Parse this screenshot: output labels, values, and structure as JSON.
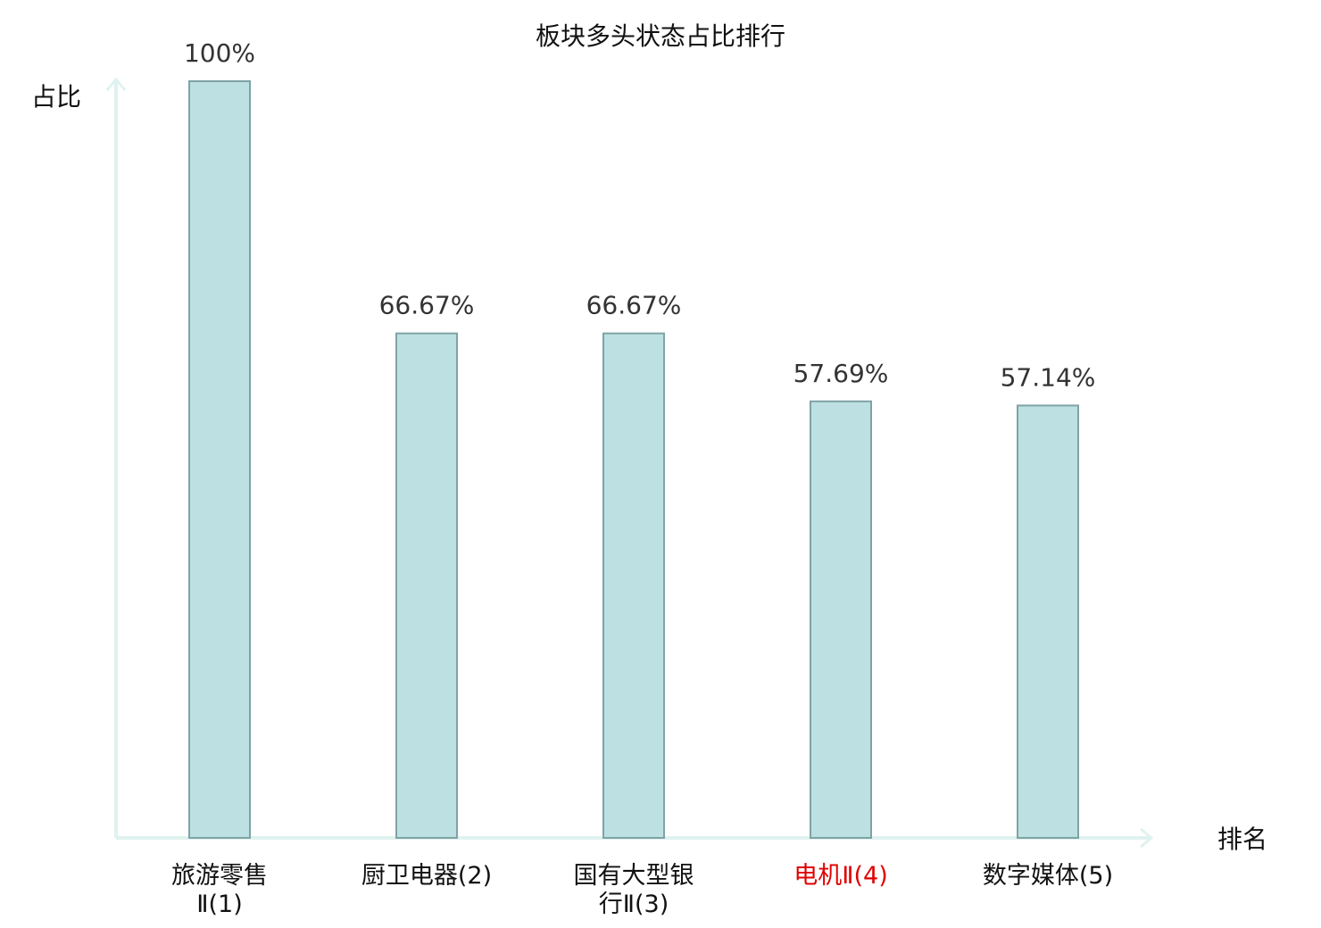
{
  "chart_data": {
    "type": "bar",
    "title": "板块多头状态占比排行",
    "y_label": "占比",
    "x_label": "排名",
    "categories": [
      "旅游零售Ⅱ(1)",
      "厨卫电器(2)",
      "国有大型银行Ⅱ(3)",
      "电机Ⅱ(4)",
      "数字媒体(5)"
    ],
    "category_colors": [
      "#111111",
      "#111111",
      "#111111",
      "#e00000",
      "#111111"
    ],
    "values": [
      100,
      66.67,
      66.67,
      57.69,
      57.14
    ],
    "value_labels": [
      "100%",
      "66.67%",
      "66.67%",
      "57.69%",
      "57.14%"
    ],
    "color": "#bde0e2",
    "edge_color": "#7fa3a5",
    "axis_color": "#dff2ef",
    "ylim": [
      0,
      100
    ]
  }
}
